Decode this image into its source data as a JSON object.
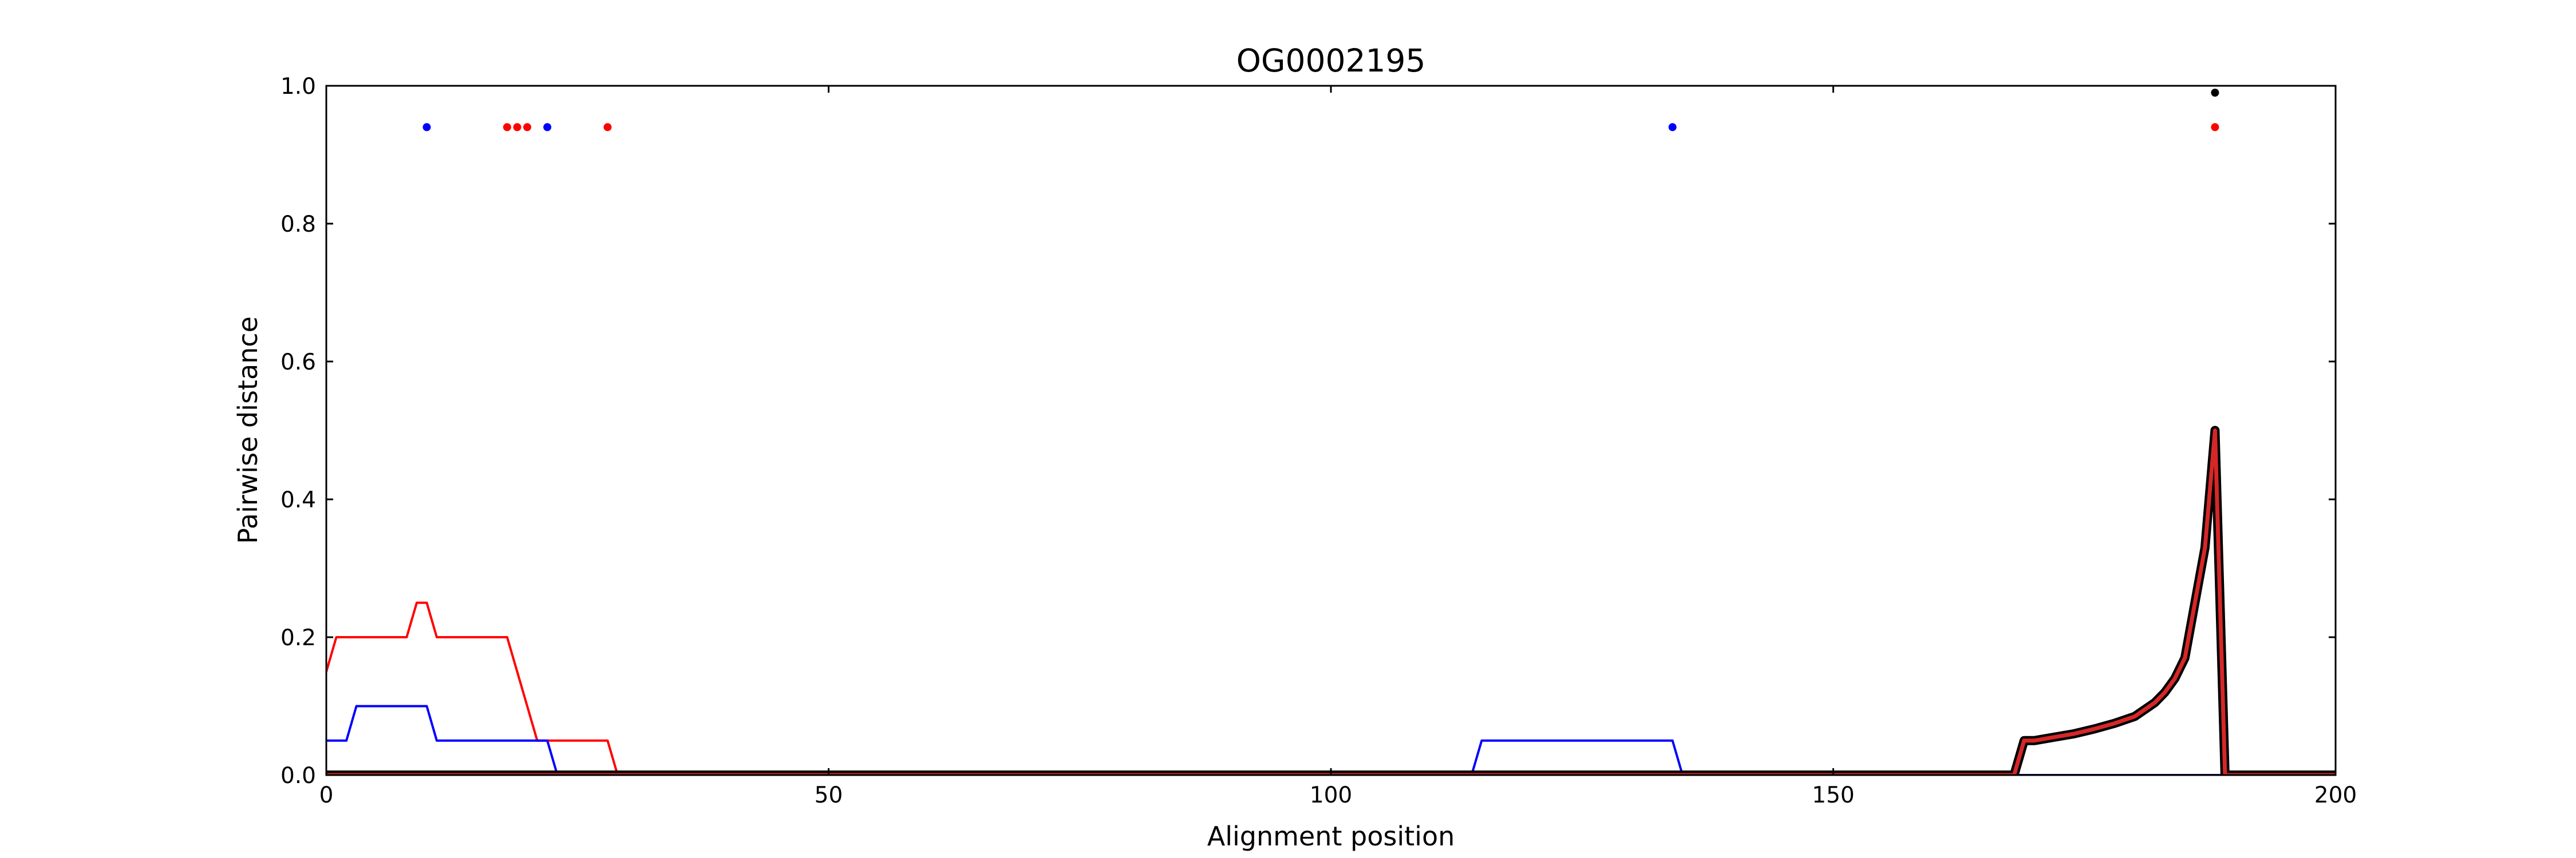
{
  "chart_data": {
    "type": "line",
    "title": "OG0002195",
    "xlabel": "Alignment position",
    "ylabel": "Pairwise distance",
    "xlim": [
      0,
      200
    ],
    "ylim": [
      0,
      1.0
    ],
    "xticks": [
      "0",
      "50",
      "100",
      "150",
      "200"
    ],
    "xtick_values": [
      0,
      50,
      100,
      150,
      200
    ],
    "yticks": [
      "0.0",
      "0.2",
      "0.4",
      "0.6",
      "0.8",
      "1.0"
    ],
    "ytick_values": [
      0,
      0.2,
      0.4,
      0.6,
      0.8,
      1.0
    ],
    "grid": false,
    "series": [
      {
        "color": "#ff0000",
        "width": 4,
        "x": [
          0,
          1,
          2,
          8,
          9,
          10,
          11,
          18,
          19,
          20,
          21,
          22,
          28,
          29,
          200
        ],
        "y": [
          0.15,
          0.2,
          0.2,
          0.2,
          0.25,
          0.25,
          0.2,
          0.2,
          0.15,
          0.1,
          0.05,
          0.05,
          0.05,
          0,
          0
        ]
      },
      {
        "color": "#0000ff",
        "width": 4,
        "x": [
          0,
          2,
          3,
          10,
          11,
          22,
          23,
          114,
          115,
          134,
          135,
          200
        ],
        "y": [
          0.05,
          0.05,
          0.1,
          0.1,
          0.05,
          0.05,
          0,
          0,
          0.05,
          0.05,
          0,
          0
        ]
      },
      {
        "color": "#000000",
        "width": 16,
        "x": [
          0,
          168,
          169,
          170,
          172,
          174,
          176,
          178,
          180,
          181,
          182,
          183,
          184,
          185,
          186,
          187,
          188,
          189,
          200
        ],
        "y": [
          0,
          0,
          0.05,
          0.05,
          0.055,
          0.06,
          0.067,
          0.075,
          0.085,
          0.095,
          0.105,
          0.12,
          0.14,
          0.17,
          0.25,
          0.33,
          0.5,
          0,
          0
        ]
      },
      {
        "color": "#d62728",
        "width": 7,
        "x": [
          0,
          168,
          169,
          170,
          172,
          174,
          176,
          178,
          180,
          181,
          182,
          183,
          184,
          185,
          186,
          187,
          188,
          189,
          200
        ],
        "y": [
          0,
          0,
          0.05,
          0.05,
          0.055,
          0.06,
          0.067,
          0.075,
          0.085,
          0.095,
          0.105,
          0.12,
          0.14,
          0.17,
          0.25,
          0.33,
          0.5,
          0,
          0
        ]
      }
    ],
    "markers": [
      {
        "color": "#0000ff",
        "x": [
          10,
          22,
          134
        ],
        "y": [
          0.94,
          0.94,
          0.94
        ]
      },
      {
        "color": "#ff0000",
        "x": [
          18,
          19,
          20,
          28,
          188
        ],
        "y": [
          0.94,
          0.94,
          0.94,
          0.94,
          0.94
        ]
      },
      {
        "color": "#000000",
        "x": [
          188
        ],
        "y": [
          0.99
        ]
      }
    ]
  }
}
